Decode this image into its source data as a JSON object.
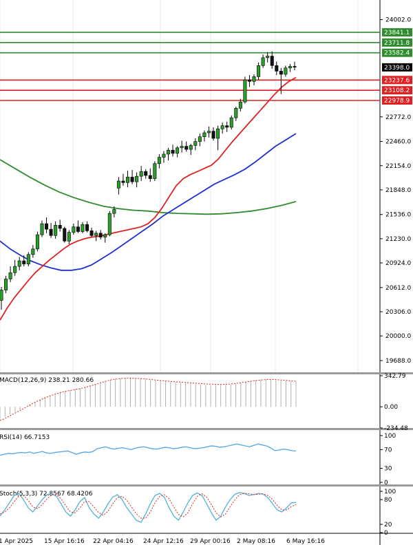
{
  "chart_data": [
    {
      "type": "candlestick",
      "panel": "price",
      "y_ticks": [
        "24002.0",
        "23398.0",
        "22772.0",
        "22460.0",
        "22154.0",
        "21848.0",
        "21536.0",
        "21230.0",
        "20924.0",
        "20612.0",
        "20306.0",
        "20000.0",
        "19688.0"
      ],
      "ylim": [
        19540,
        24250
      ],
      "current_price": {
        "label": "23398.0",
        "value": 23398.0
      },
      "levels": [
        {
          "label": "23841.1",
          "value": 23841.1,
          "kind": "resistance",
          "color": "#2e8b2e"
        },
        {
          "label": "23711.8",
          "value": 23711.8,
          "kind": "resistance",
          "color": "#2e8b2e"
        },
        {
          "label": "23582.4",
          "value": 23582.4,
          "kind": "resistance",
          "color": "#2e8b2e"
        },
        {
          "label": "23237.6",
          "value": 23237.6,
          "kind": "support",
          "color": "#e02020"
        },
        {
          "label": "23108.2",
          "value": 23108.2,
          "kind": "support",
          "color": "#e02020"
        },
        {
          "label": "22978.9",
          "value": 22978.9,
          "kind": "support",
          "color": "#e02020"
        }
      ],
      "candles": [
        [
          20450,
          20620,
          20330,
          20580
        ],
        [
          20580,
          20760,
          20540,
          20720
        ],
        [
          20720,
          20880,
          20680,
          20800
        ],
        [
          20800,
          20960,
          20760,
          20880
        ],
        [
          20880,
          21000,
          20830,
          20950
        ],
        [
          20950,
          21020,
          20880,
          20910
        ],
        [
          20910,
          21060,
          20880,
          21030
        ],
        [
          21030,
          21150,
          20990,
          21100
        ],
        [
          21100,
          21320,
          21070,
          21280
        ],
        [
          21280,
          21460,
          21250,
          21420
        ],
        [
          21420,
          21500,
          21300,
          21350
        ],
        [
          21350,
          21430,
          21240,
          21270
        ],
        [
          21270,
          21450,
          21230,
          21400
        ],
        [
          21400,
          21470,
          21320,
          21360
        ],
        [
          21360,
          21380,
          21180,
          21200
        ],
        [
          21200,
          21340,
          21160,
          21310
        ],
        [
          21310,
          21420,
          21280,
          21380
        ],
        [
          21380,
          21460,
          21300,
          21320
        ],
        [
          21320,
          21440,
          21300,
          21410
        ],
        [
          21410,
          21450,
          21310,
          21330
        ],
        [
          21330,
          21370,
          21250,
          21270
        ],
        [
          21270,
          21330,
          21200,
          21300
        ],
        [
          21300,
          21340,
          21220,
          21250
        ],
        [
          21250,
          21300,
          21180,
          21280
        ],
        [
          21280,
          21580,
          21260,
          21550
        ],
        [
          21550,
          21640,
          21500,
          21600
        ],
        [
          21870,
          22010,
          21790,
          21960
        ],
        [
          21960,
          22050,
          21900,
          21940
        ],
        [
          21940,
          22090,
          21880,
          22010
        ],
        [
          22010,
          22100,
          21920,
          21950
        ],
        [
          21950,
          22070,
          21880,
          22020
        ],
        [
          22020,
          22150,
          21960,
          22080
        ],
        [
          22080,
          22110,
          21990,
          22030
        ],
        [
          22030,
          22120,
          21950,
          21990
        ],
        [
          21990,
          22210,
          21960,
          22180
        ],
        [
          22180,
          22300,
          22120,
          22260
        ],
        [
          22260,
          22340,
          22190,
          22300
        ],
        [
          22300,
          22380,
          22220,
          22350
        ],
        [
          22350,
          22420,
          22270,
          22310
        ],
        [
          22310,
          22400,
          22260,
          22380
        ],
        [
          22380,
          22470,
          22320,
          22400
        ],
        [
          22400,
          22460,
          22330,
          22360
        ],
        [
          22360,
          22430,
          22290,
          22410
        ],
        [
          22410,
          22500,
          22350,
          22460
        ],
        [
          22460,
          22560,
          22400,
          22520
        ],
        [
          22520,
          22600,
          22460,
          22570
        ],
        [
          22570,
          22650,
          22510,
          22590
        ],
        [
          22590,
          22640,
          22470,
          22500
        ],
        [
          22500,
          22660,
          22350,
          22620
        ],
        [
          22620,
          22700,
          22560,
          22660
        ],
        [
          22660,
          22710,
          22580,
          22640
        ],
        [
          22640,
          22790,
          22610,
          22760
        ],
        [
          22760,
          22900,
          22720,
          22880
        ],
        [
          22880,
          23000,
          22840,
          22960
        ],
        [
          22960,
          23280,
          22940,
          23240
        ],
        [
          23240,
          23300,
          23150,
          23220
        ],
        [
          23220,
          23310,
          23170,
          23280
        ],
        [
          23280,
          23460,
          23240,
          23420
        ],
        [
          23420,
          23560,
          23390,
          23520
        ],
        [
          23520,
          23590,
          23460,
          23540
        ],
        [
          23540,
          23600,
          23380,
          23420
        ],
        [
          23420,
          23470,
          23300,
          23350
        ],
        [
          23350,
          23390,
          23060,
          23310
        ],
        [
          23310,
          23420,
          23280,
          23390
        ],
        [
          23390,
          23440,
          23340,
          23410
        ],
        [
          23410,
          23470,
          23360,
          23400
        ]
      ],
      "ma_fast": [
        20200,
        20350,
        20480,
        20590,
        20700,
        20800,
        20880,
        20960,
        21030,
        21100,
        21160,
        21200,
        21230,
        21250,
        21260,
        21280,
        21300,
        21320,
        21340,
        21360,
        21380,
        21420,
        21500,
        21620,
        21760,
        21900,
        21990,
        22040,
        22080,
        22120,
        22160,
        22240,
        22350,
        22460,
        22560,
        22660,
        22760,
        22860,
        22960,
        23060,
        23150,
        23220,
        23270
      ],
      "ma_mid": [
        21200,
        21100,
        21020,
        20950,
        20900,
        20860,
        20830,
        20830,
        20850,
        20900,
        20980,
        21060,
        21150,
        21240,
        21330,
        21420,
        21520,
        21600,
        21680,
        21760,
        21840,
        21920,
        21980,
        22040,
        22110,
        22200,
        22300,
        22400,
        22480,
        22560
      ],
      "ma_slow": [
        22230,
        22120,
        22010,
        21910,
        21820,
        21750,
        21690,
        21640,
        21610,
        21590,
        21580,
        21560,
        21550,
        21545,
        21540,
        21545,
        21560,
        21580,
        21610,
        21650,
        21700
      ]
    },
    {
      "type": "bar+line",
      "panel": "macd",
      "title": "MACD(12,26,9) 238.21 280.66",
      "y_ticks": [
        "342.79",
        "0.00",
        "-234.48"
      ],
      "ylim": [
        -234.48,
        342.79
      ],
      "histogram": [
        -130,
        -110,
        -85,
        -60,
        -30,
        0,
        25,
        55,
        80,
        105,
        125,
        145,
        160,
        175,
        185,
        195,
        205,
        220,
        235,
        250,
        270,
        285,
        300,
        310,
        315,
        318,
        318,
        316,
        312,
        305,
        295,
        288,
        285,
        280,
        276,
        272,
        268,
        262,
        256,
        250,
        246,
        242,
        240,
        238,
        238,
        240,
        245,
        252,
        262,
        272,
        282,
        292,
        298,
        300,
        298,
        294,
        290,
        286,
        282,
        278
      ],
      "signal": [
        -150,
        -130,
        -100,
        -70,
        -40,
        -10,
        20,
        50,
        75,
        100,
        120,
        140,
        155,
        170,
        180,
        190,
        200,
        215,
        230,
        245,
        265,
        280,
        295,
        305,
        312,
        315,
        316,
        315,
        312,
        308,
        302,
        296,
        290,
        285,
        280,
        276,
        272,
        268,
        264,
        260,
        256,
        252,
        250,
        248,
        246,
        248,
        252,
        258,
        266,
        274,
        282,
        290,
        296,
        300,
        302,
        300,
        296,
        292,
        286,
        281
      ]
    },
    {
      "type": "line",
      "panel": "rsi",
      "title": "RSI(14) 66.7153",
      "y_ticks": [
        "100",
        "70",
        "30",
        "0"
      ],
      "ylim": [
        0,
        100
      ],
      "values": [
        58,
        60,
        62,
        61,
        63,
        64,
        63,
        65,
        62,
        64,
        66,
        63,
        62,
        64,
        65,
        66,
        67,
        64,
        60,
        63,
        65,
        64,
        66,
        72,
        74,
        76,
        73,
        71,
        73,
        74,
        72,
        70,
        73,
        75,
        76,
        74,
        72,
        71,
        73,
        75,
        74,
        72,
        73,
        75,
        76,
        74,
        72,
        73,
        74,
        76,
        78,
        77,
        75,
        76,
        78,
        80,
        82,
        80,
        78,
        76,
        79,
        82,
        80,
        78,
        74,
        68,
        69,
        71,
        70,
        68,
        67
      ]
    },
    {
      "type": "line",
      "panel": "stochastic",
      "title": "Stoch(5,3,3) 72.8567 68.4206",
      "y_ticks": [
        "100",
        "80",
        "20",
        "0"
      ],
      "ylim": [
        0,
        100
      ],
      "k": [
        40,
        55,
        72,
        90,
        95,
        80,
        60,
        50,
        65,
        80,
        92,
        95,
        88,
        70,
        50,
        40,
        55,
        75,
        85,
        60,
        45,
        35,
        50,
        70,
        86,
        92,
        80,
        60,
        45,
        30,
        25,
        45,
        70,
        90,
        95,
        85,
        60,
        40,
        30,
        50,
        72,
        90,
        96,
        90,
        70,
        48,
        30,
        40,
        62,
        80,
        93,
        97,
        95,
        90,
        92,
        95,
        93,
        85,
        70,
        55,
        50,
        60,
        72,
        73
      ],
      "d": [
        45,
        50,
        60,
        75,
        88,
        90,
        78,
        62,
        58,
        68,
        82,
        92,
        92,
        82,
        65,
        50,
        48,
        60,
        75,
        75,
        62,
        48,
        42,
        52,
        70,
        85,
        88,
        78,
        62,
        46,
        35,
        35,
        50,
        72,
        88,
        92,
        82,
        62,
        44,
        38,
        48,
        70,
        88,
        94,
        86,
        68,
        48,
        38,
        45,
        63,
        80,
        92,
        95,
        94,
        92,
        93,
        94,
        90,
        80,
        66,
        55,
        55,
        63,
        68
      ]
    }
  ],
  "x_axis": {
    "labels": [
      "1 Apr 2025",
      "15 Apr 16:16",
      "22 Apr 04:16",
      "24 Apr 12:16",
      "29 Apr 00:16",
      "2 May 08:16",
      "6 May 16:16"
    ]
  }
}
